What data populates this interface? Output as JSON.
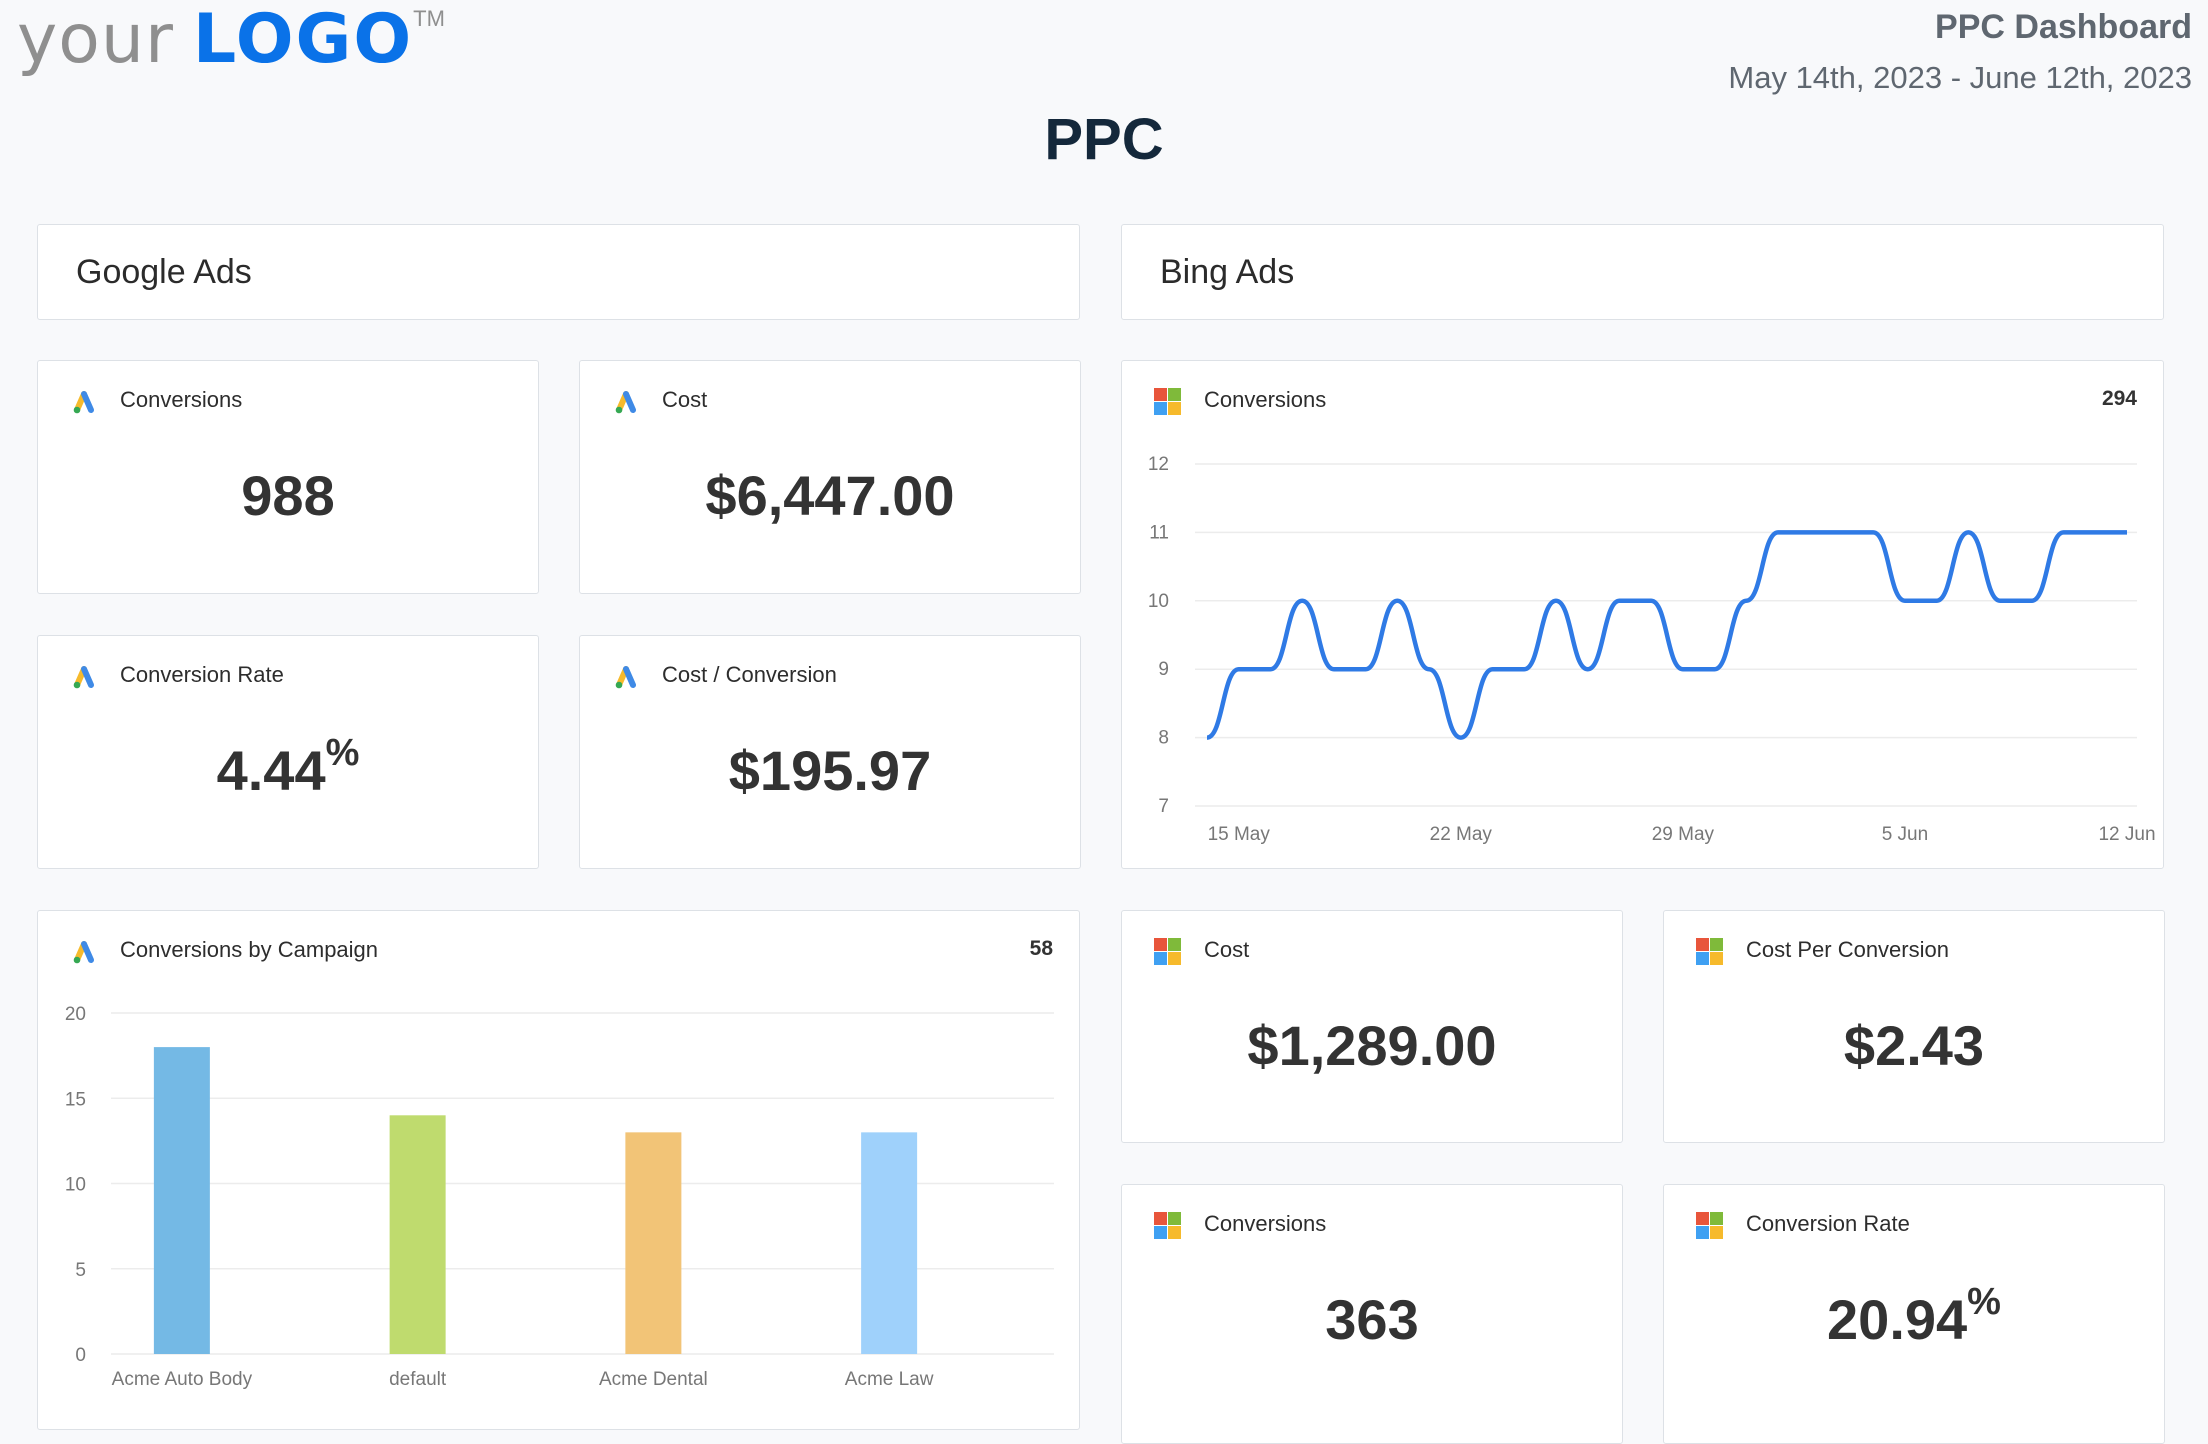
{
  "header": {
    "logo_text_light": "your",
    "logo_text_bold": "LOGO",
    "logo_tm": "TM",
    "dashboard_title": "PPC Dashboard",
    "date_range": "May 14th, 2023 - June 12th, 2023",
    "page_title": "PPC"
  },
  "sections": {
    "google": "Google Ads",
    "bing": "Bing Ads"
  },
  "google_cards": [
    {
      "title": "Conversions",
      "value": "988",
      "icon": "google-ads-icon"
    },
    {
      "title": "Cost",
      "value": "$6,447.00",
      "icon": "google-ads-icon"
    },
    {
      "title": "Conversion Rate",
      "value": "4.44",
      "suffix": "%",
      "icon": "google-ads-icon"
    },
    {
      "title": "Cost / Conversion",
      "value": "$195.97",
      "icon": "google-ads-icon"
    }
  ],
  "bing_cards": [
    {
      "title": "Cost",
      "value": "$1,289.00",
      "icon": "microsoft-icon"
    },
    {
      "title": "Cost Per Conversion",
      "value": "$2.43",
      "icon": "microsoft-icon"
    },
    {
      "title": "Conversions",
      "value": "363",
      "icon": "microsoft-icon"
    },
    {
      "title": "Conversion Rate",
      "value": "20.94",
      "suffix": "%",
      "icon": "microsoft-icon"
    }
  ],
  "colors": {
    "line": "#2f7ae5",
    "bars": [
      "#74b9e5",
      "#bfdb6e",
      "#f2c477",
      "#9fd1fb"
    ],
    "logo_brand": "#0a72e8"
  },
  "chart_data": [
    {
      "type": "line",
      "title": "Conversions",
      "total": "294",
      "source": "Bing Ads",
      "x": [
        "2023-05-14",
        "2023-05-15",
        "2023-05-16",
        "2023-05-17",
        "2023-05-18",
        "2023-05-19",
        "2023-05-20",
        "2023-05-21",
        "2023-05-22",
        "2023-05-23",
        "2023-05-24",
        "2023-05-25",
        "2023-05-26",
        "2023-05-27",
        "2023-05-28",
        "2023-05-29",
        "2023-05-30",
        "2023-05-31",
        "2023-06-01",
        "2023-06-02",
        "2023-06-03",
        "2023-06-04",
        "2023-06-05",
        "2023-06-06",
        "2023-06-07",
        "2023-06-08",
        "2023-06-09",
        "2023-06-10",
        "2023-06-11",
        "2023-06-12"
      ],
      "values": [
        8,
        9,
        9,
        10,
        9,
        9,
        10,
        9,
        8,
        9,
        9,
        10,
        9,
        10,
        10,
        9,
        9,
        10,
        11,
        11,
        11,
        11,
        10,
        10,
        11,
        10,
        10,
        11,
        11,
        11
      ],
      "xticks": [
        {
          "date": "2023-05-15",
          "label": "15 May"
        },
        {
          "date": "2023-05-22",
          "label": "22 May"
        },
        {
          "date": "2023-05-29",
          "label": "29 May"
        },
        {
          "date": "2023-06-05",
          "label": "5 Jun"
        },
        {
          "date": "2023-06-12",
          "label": "12 Jun"
        }
      ],
      "yticks": [
        "7",
        "8",
        "9",
        "10",
        "11",
        "12"
      ],
      "ylim": [
        7,
        12
      ],
      "grid": true
    },
    {
      "type": "bar",
      "title": "Conversions by Campaign",
      "total": "58",
      "source": "Google Ads",
      "categories": [
        "Acme Auto Body",
        "default",
        "Acme Dental",
        "Acme Law"
      ],
      "values": [
        18,
        14,
        13,
        13
      ],
      "yticks": [
        "0",
        "5",
        "10",
        "15",
        "20"
      ],
      "ylim": [
        0,
        20
      ],
      "grid": true
    }
  ]
}
